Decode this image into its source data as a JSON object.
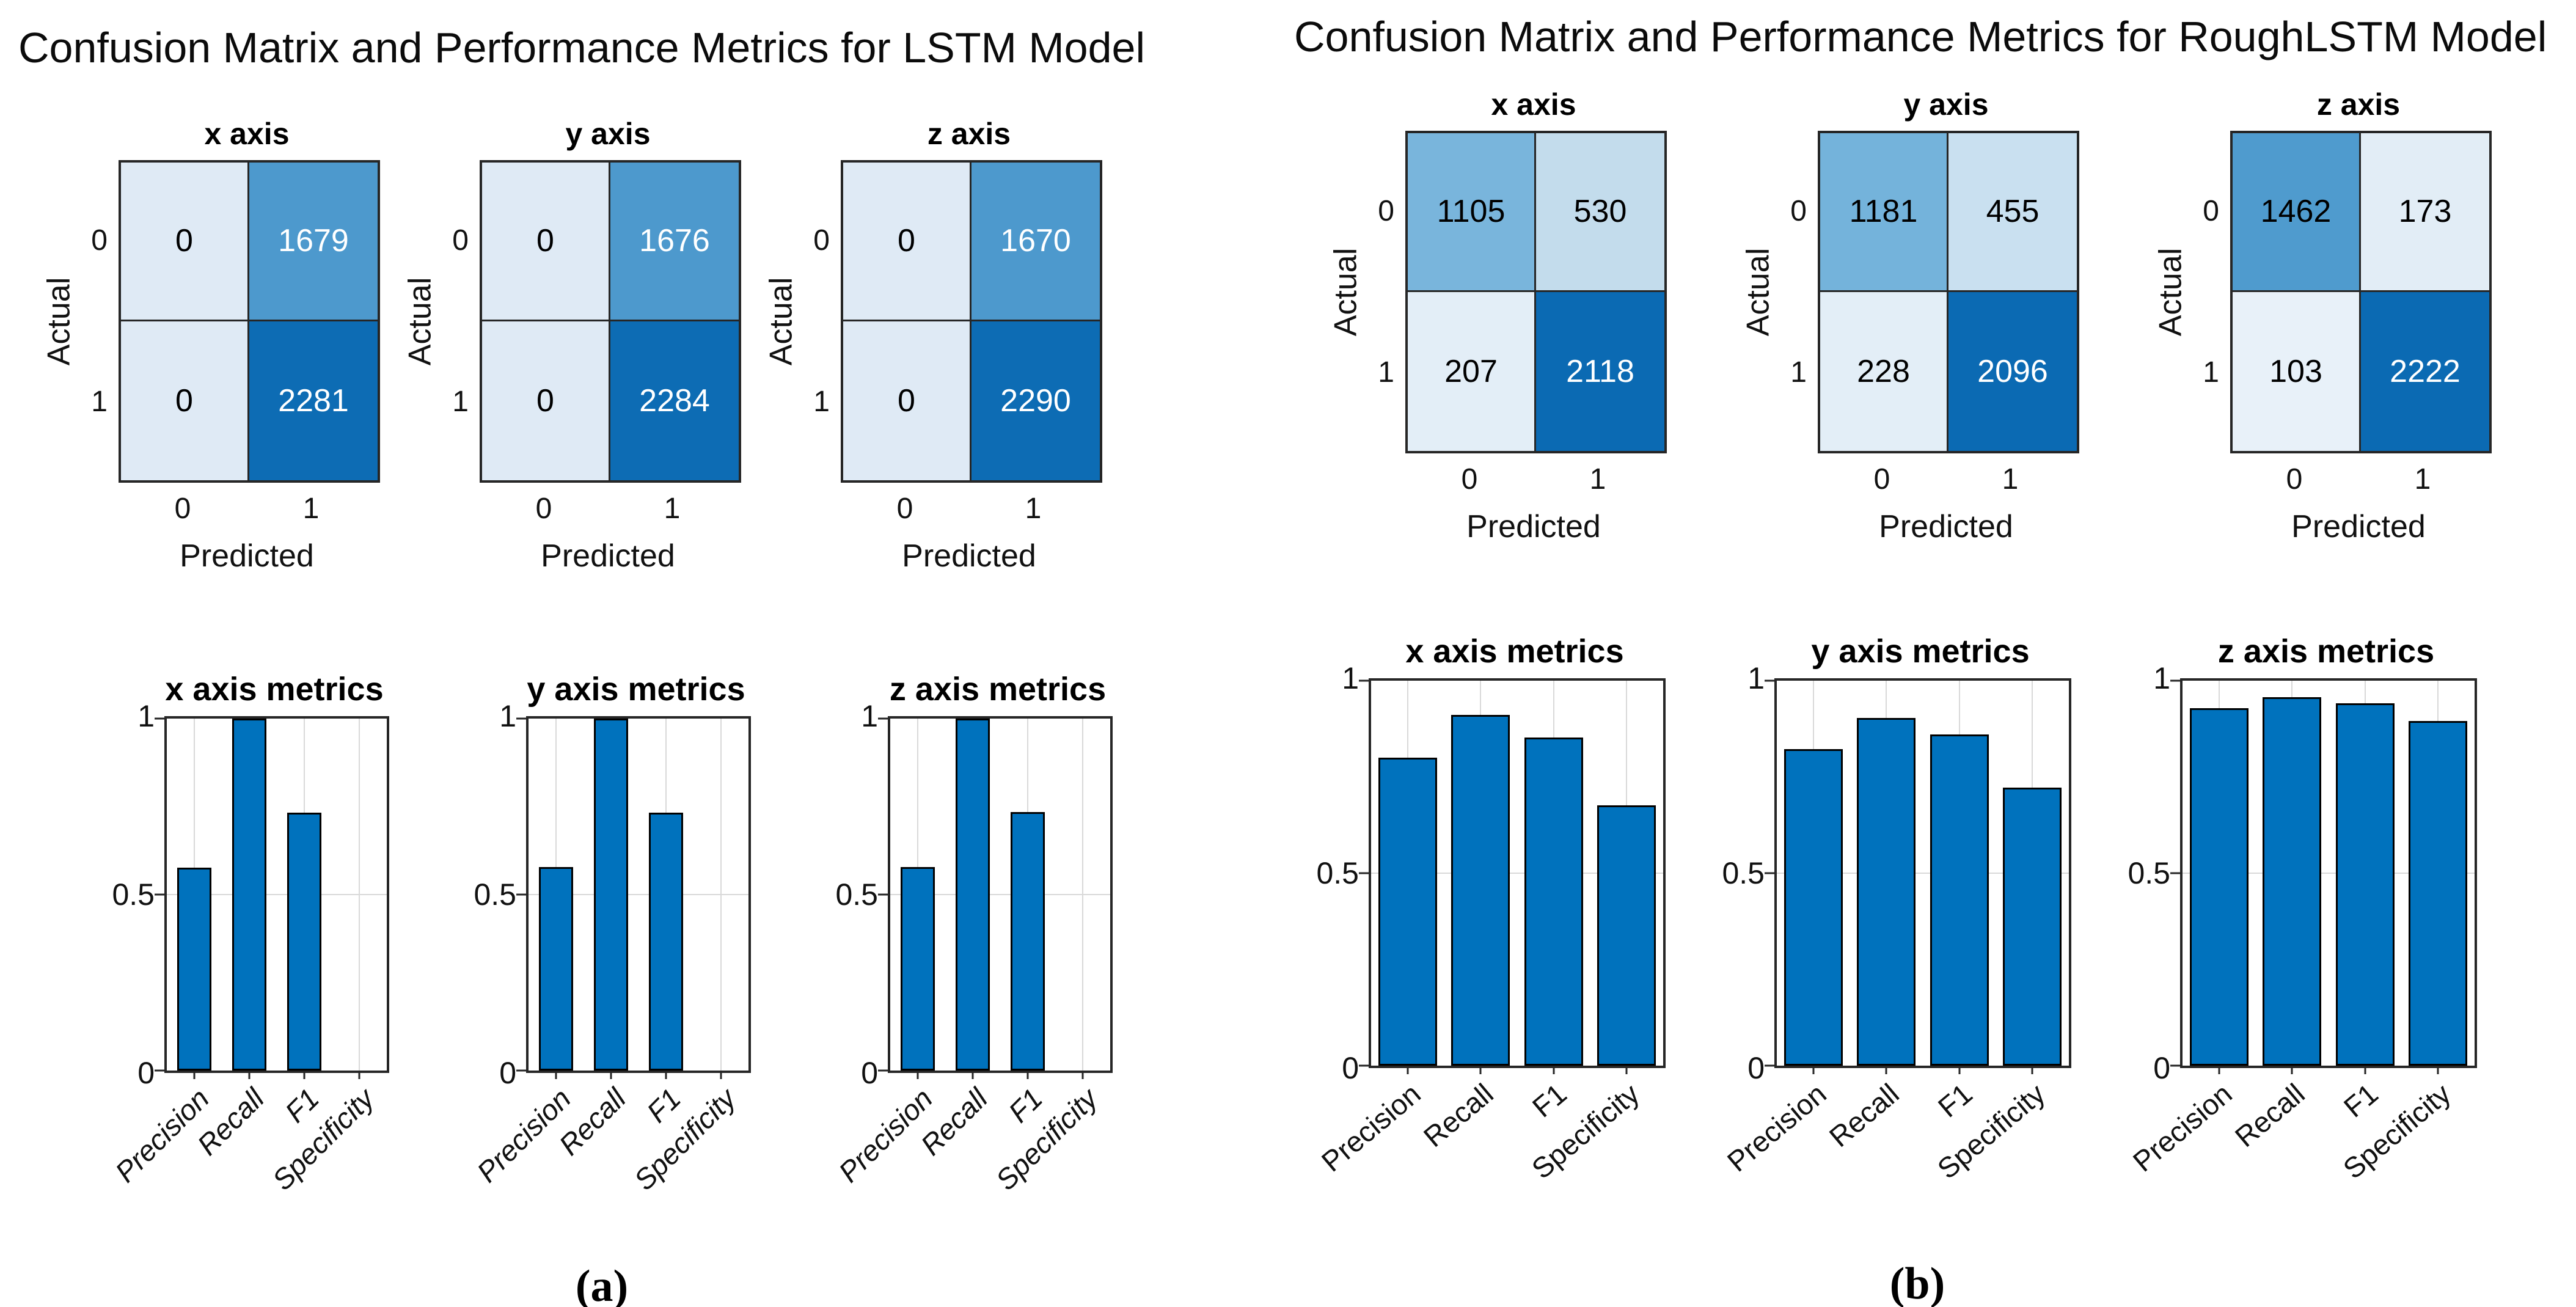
{
  "panels": [
    {
      "id": "a",
      "title": "Confusion Matrix and Performance Metrics for LSTM Model",
      "caption": "(a)"
    },
    {
      "id": "b",
      "title": "Confusion Matrix and Performance Metrics for RoughLSTM Model",
      "caption": "(b)"
    }
  ],
  "colors": {
    "bar_fill": "#0072BD",
    "bar_edge": "#000000",
    "axes_line": "#262626",
    "gridline": "#d9d9d9"
  },
  "chart_data": [
    {
      "id": "cm-a-x",
      "type": "heatmap",
      "panel": "a",
      "title": "x axis",
      "xlabel": "Predicted",
      "ylabel": "Actual",
      "xticks": [
        "0",
        "1"
      ],
      "yticks": [
        "0",
        "1"
      ],
      "values": [
        [
          0,
          1679
        ],
        [
          0,
          2281
        ]
      ],
      "cell_colors": [
        [
          "#dfeaf5",
          "#4d99cd"
        ],
        [
          "#dfeaf5",
          "#0d6cb4"
        ]
      ],
      "text_colors": [
        [
          "#000000",
          "#ffffff"
        ],
        [
          "#000000",
          "#ffffff"
        ]
      ]
    },
    {
      "id": "cm-a-y",
      "type": "heatmap",
      "panel": "a",
      "title": "y axis",
      "xlabel": "Predicted",
      "ylabel": "Actual",
      "xticks": [
        "0",
        "1"
      ],
      "yticks": [
        "0",
        "1"
      ],
      "values": [
        [
          0,
          1676
        ],
        [
          0,
          2284
        ]
      ],
      "cell_colors": [
        [
          "#dfeaf5",
          "#4d99cd"
        ],
        [
          "#dfeaf5",
          "#0d6cb4"
        ]
      ],
      "text_colors": [
        [
          "#000000",
          "#ffffff"
        ],
        [
          "#000000",
          "#ffffff"
        ]
      ]
    },
    {
      "id": "cm-a-z",
      "type": "heatmap",
      "panel": "a",
      "title": "z axis",
      "xlabel": "Predicted",
      "ylabel": "Actual",
      "xticks": [
        "0",
        "1"
      ],
      "yticks": [
        "0",
        "1"
      ],
      "values": [
        [
          0,
          1670
        ],
        [
          0,
          2290
        ]
      ],
      "cell_colors": [
        [
          "#dfeaf5",
          "#4d99cd"
        ],
        [
          "#dfeaf5",
          "#0d6cb4"
        ]
      ],
      "text_colors": [
        [
          "#000000",
          "#ffffff"
        ],
        [
          "#000000",
          "#ffffff"
        ]
      ]
    },
    {
      "id": "cm-b-x",
      "type": "heatmap",
      "panel": "b",
      "title": "x axis",
      "xlabel": "Predicted",
      "ylabel": "Actual",
      "xticks": [
        "0",
        "1"
      ],
      "yticks": [
        "0",
        "1"
      ],
      "values": [
        [
          1105,
          530
        ],
        [
          207,
          2118
        ]
      ],
      "cell_colors": [
        [
          "#79b5dc",
          "#c3dcec"
        ],
        [
          "#e3eef7",
          "#0b6ab3"
        ]
      ],
      "text_colors": [
        [
          "#000000",
          "#000000"
        ],
        [
          "#000000",
          "#ffffff"
        ]
      ]
    },
    {
      "id": "cm-b-y",
      "type": "heatmap",
      "panel": "b",
      "title": "y axis",
      "xlabel": "Predicted",
      "ylabel": "Actual",
      "xticks": [
        "0",
        "1"
      ],
      "yticks": [
        "0",
        "1"
      ],
      "values": [
        [
          1181,
          455
        ],
        [
          228,
          2096
        ]
      ],
      "cell_colors": [
        [
          "#74b3db",
          "#c9e0f0"
        ],
        [
          "#e3eef7",
          "#0b6ab3"
        ]
      ],
      "text_colors": [
        [
          "#000000",
          "#000000"
        ],
        [
          "#000000",
          "#ffffff"
        ]
      ]
    },
    {
      "id": "cm-b-z",
      "type": "heatmap",
      "panel": "b",
      "title": "z axis",
      "xlabel": "Predicted",
      "ylabel": "Actual",
      "xticks": [
        "0",
        "1"
      ],
      "yticks": [
        "0",
        "1"
      ],
      "values": [
        [
          1462,
          173
        ],
        [
          103,
          2222
        ]
      ],
      "cell_colors": [
        [
          "#4f9bce",
          "#e2edf6"
        ],
        [
          "#e8f1f9",
          "#0b6ab3"
        ]
      ],
      "text_colors": [
        [
          "#000000",
          "#000000"
        ],
        [
          "#000000",
          "#ffffff"
        ]
      ]
    },
    {
      "id": "bar-a-x",
      "type": "bar",
      "panel": "a",
      "title": "x axis metrics",
      "categories": [
        "Precision",
        "Recall",
        "F1",
        "Specificity"
      ],
      "values": [
        0.576,
        1.0,
        0.731,
        0
      ],
      "ylim": [
        0,
        1
      ],
      "yticks": [
        0,
        0.5,
        1
      ],
      "grid": true,
      "bar_frac": 0.62,
      "italic_labels": true
    },
    {
      "id": "bar-a-y",
      "type": "bar",
      "panel": "a",
      "title": "y axis metrics",
      "categories": [
        "Precision",
        "Recall",
        "F1",
        "Specificity"
      ],
      "values": [
        0.577,
        1.0,
        0.732,
        0
      ],
      "ylim": [
        0,
        1
      ],
      "yticks": [
        0,
        0.5,
        1
      ],
      "grid": true,
      "bar_frac": 0.62,
      "italic_labels": true
    },
    {
      "id": "bar-a-z",
      "type": "bar",
      "panel": "a",
      "title": "z axis metrics",
      "categories": [
        "Precision",
        "Recall",
        "F1",
        "Specificity"
      ],
      "values": [
        0.578,
        1.0,
        0.733,
        0
      ],
      "ylim": [
        0,
        1
      ],
      "yticks": [
        0,
        0.5,
        1
      ],
      "grid": true,
      "bar_frac": 0.62,
      "italic_labels": true
    },
    {
      "id": "bar-b-x",
      "type": "bar",
      "panel": "b",
      "title": "x axis metrics",
      "categories": [
        "Precision",
        "Recall",
        "F1",
        "Specificity"
      ],
      "values": [
        0.8,
        0.911,
        0.852,
        0.676
      ],
      "ylim": [
        0,
        1
      ],
      "yticks": [
        0,
        0.5,
        1
      ],
      "grid": true,
      "bar_frac": 0.8,
      "italic_labels": false
    },
    {
      "id": "bar-b-y",
      "type": "bar",
      "panel": "b",
      "title": "y axis metrics",
      "categories": [
        "Precision",
        "Recall",
        "F1",
        "Specificity"
      ],
      "values": [
        0.822,
        0.902,
        0.86,
        0.722
      ],
      "ylim": [
        0,
        1
      ],
      "yticks": [
        0,
        0.5,
        1
      ],
      "grid": true,
      "bar_frac": 0.8,
      "italic_labels": false
    },
    {
      "id": "bar-b-z",
      "type": "bar",
      "panel": "b",
      "title": "z axis metrics",
      "categories": [
        "Precision",
        "Recall",
        "F1",
        "Specificity"
      ],
      "values": [
        0.928,
        0.956,
        0.941,
        0.894
      ],
      "ylim": [
        0,
        1
      ],
      "yticks": [
        0,
        0.5,
        1
      ],
      "grid": true,
      "bar_frac": 0.8,
      "italic_labels": false
    }
  ]
}
